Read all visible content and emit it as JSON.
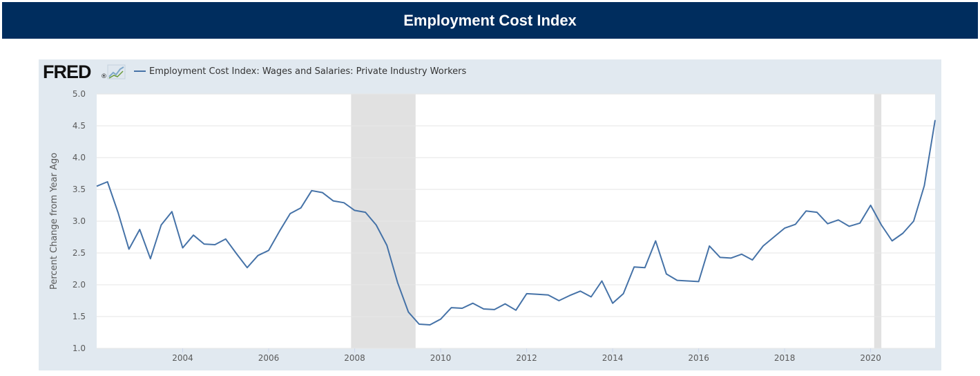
{
  "header": {
    "title": "Employment Cost Index"
  },
  "logo": {
    "text": "FRED",
    "registered": "®"
  },
  "colors": {
    "header_bg": "#002d5e",
    "frame_bg": "#e1e9f0",
    "line": "#4572a7",
    "recession": "#e1e1e1",
    "grid": "#e6e6e6"
  },
  "chart_data": {
    "type": "line",
    "title": "Employment Cost Index",
    "ylabel": "Percent Change from Year Ago",
    "xlabel": "",
    "ylim": [
      1.0,
      5.0
    ],
    "xlim": [
      2002.0,
      2021.5
    ],
    "y_ticks": [
      1.0,
      1.5,
      2.0,
      2.5,
      3.0,
      3.5,
      4.0,
      4.5,
      5.0
    ],
    "y_tick_labels": [
      "1.0",
      "1.5",
      "2.0",
      "2.5",
      "3.0",
      "3.5",
      "4.0",
      "4.5",
      "5.0"
    ],
    "x_ticks": [
      2004,
      2006,
      2008,
      2010,
      2012,
      2014,
      2016,
      2018,
      2020
    ],
    "x_tick_labels": [
      "2004",
      "2006",
      "2008",
      "2010",
      "2012",
      "2014",
      "2016",
      "2018",
      "2020"
    ],
    "grid": true,
    "recessions": [
      [
        2007.917,
        2009.417
      ],
      [
        2020.083,
        2020.25
      ]
    ],
    "series": [
      {
        "name": "Employment Cost Index: Wages and Salaries: Private Industry Workers",
        "color": "#4572a7",
        "x": [
          2002.0,
          2002.25,
          2002.5,
          2002.75,
          2003.0,
          2003.25,
          2003.5,
          2003.75,
          2004.0,
          2004.25,
          2004.5,
          2004.75,
          2005.0,
          2005.25,
          2005.5,
          2005.75,
          2006.0,
          2006.25,
          2006.5,
          2006.75,
          2007.0,
          2007.25,
          2007.5,
          2007.75,
          2008.0,
          2008.25,
          2008.5,
          2008.75,
          2009.0,
          2009.25,
          2009.5,
          2009.75,
          2010.0,
          2010.25,
          2010.5,
          2010.75,
          2011.0,
          2011.25,
          2011.5,
          2011.75,
          2012.0,
          2012.25,
          2012.5,
          2012.75,
          2013.0,
          2013.25,
          2013.5,
          2013.75,
          2014.0,
          2014.25,
          2014.5,
          2014.75,
          2015.0,
          2015.25,
          2015.5,
          2015.75,
          2016.0,
          2016.25,
          2016.5,
          2016.75,
          2017.0,
          2017.25,
          2017.5,
          2017.75,
          2018.0,
          2018.25,
          2018.5,
          2018.75,
          2019.0,
          2019.25,
          2019.5,
          2019.75,
          2020.0,
          2020.25,
          2020.5,
          2020.75,
          2021.0,
          2021.25,
          2021.5
        ],
        "values": [
          3.55,
          3.62,
          3.13,
          2.56,
          2.87,
          2.41,
          2.94,
          3.15,
          2.58,
          2.78,
          2.64,
          2.63,
          2.72,
          2.49,
          2.27,
          2.46,
          2.54,
          2.84,
          3.12,
          3.21,
          3.48,
          3.45,
          3.32,
          3.29,
          3.17,
          3.14,
          2.94,
          2.62,
          2.03,
          1.57,
          1.38,
          1.37,
          1.46,
          1.64,
          1.63,
          1.71,
          1.62,
          1.61,
          1.7,
          1.6,
          1.86,
          1.85,
          1.84,
          1.75,
          1.83,
          1.9,
          1.81,
          2.06,
          1.71,
          1.86,
          2.28,
          2.27,
          2.69,
          2.17,
          2.07,
          2.06,
          2.05,
          2.61,
          2.43,
          2.42,
          2.48,
          2.39,
          2.61,
          2.75,
          2.89,
          2.95,
          3.16,
          3.14,
          2.96,
          3.02,
          2.92,
          2.97,
          3.25,
          2.94,
          2.69,
          2.81,
          3.0,
          3.56,
          4.59
        ]
      }
    ]
  }
}
